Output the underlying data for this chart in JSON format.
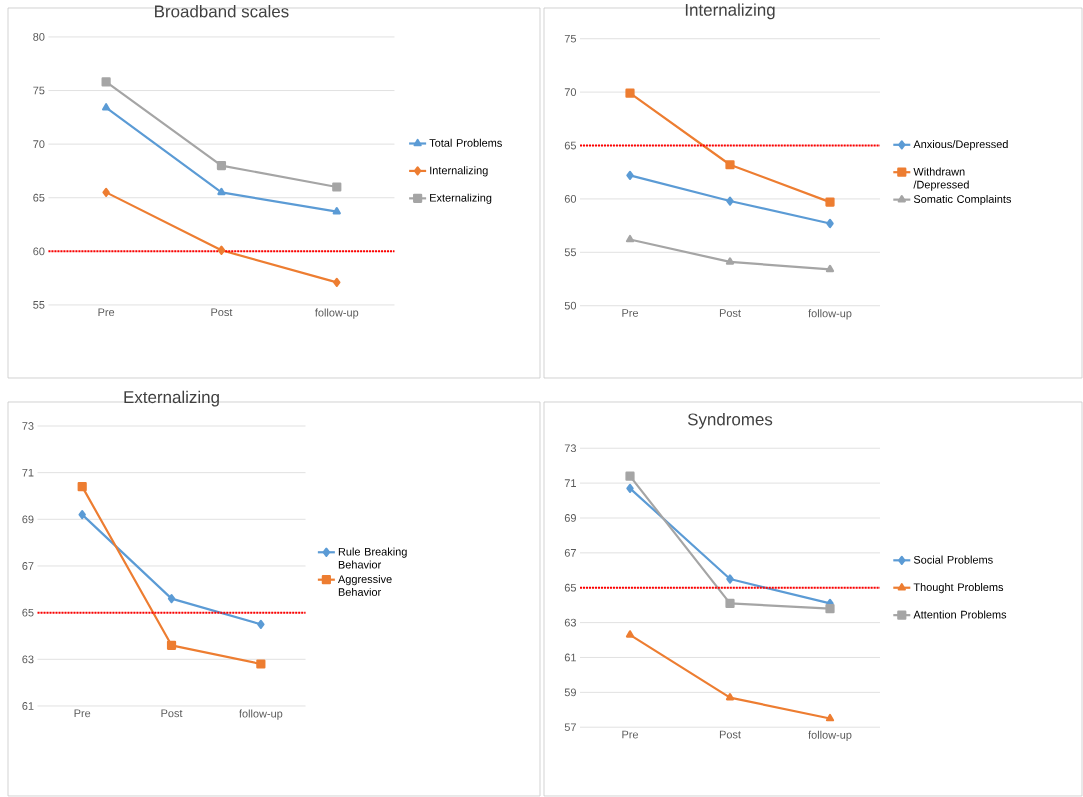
{
  "chart_data": [
    {
      "type": "line",
      "title": "Broadband scales",
      "categories": [
        "Pre",
        "Post",
        "follow-up"
      ],
      "ylim": [
        55,
        80
      ],
      "yticks": [
        55,
        60,
        65,
        70,
        75,
        80
      ],
      "grid": "y",
      "legend": "right",
      "series": [
        {
          "name": "Total Problems",
          "color": "#5b9bd5",
          "marker": "triangle",
          "values": [
            73.4,
            65.5,
            63.7
          ]
        },
        {
          "name": "Internalizing",
          "color": "#ed7d31",
          "marker": "diamond",
          "values": [
            65.5,
            60.1,
            57.1
          ]
        },
        {
          "name": "Externalizing",
          "color": "#a5a5a5",
          "marker": "square",
          "values": [
            75.8,
            68.0,
            66.0
          ]
        }
      ],
      "ref_lines": [
        {
          "axis": "y",
          "value": 60,
          "color": "#ff0000",
          "line_style": "dotted"
        }
      ]
    },
    {
      "type": "line",
      "title": "Internalizing",
      "categories": [
        "Pre",
        "Post",
        "follow-up"
      ],
      "ylim": [
        50,
        75
      ],
      "yticks": [
        50,
        55,
        60,
        65,
        70,
        75
      ],
      "grid": "y",
      "legend": "right",
      "series": [
        {
          "name": "Anxious/Depressed",
          "color": "#5b9bd5",
          "marker": "diamond",
          "values": [
            62.2,
            59.8,
            57.7
          ]
        },
        {
          "name": "Withdrawn /Depressed",
          "color": "#ed7d31",
          "marker": "square",
          "values": [
            69.9,
            63.2,
            59.7
          ]
        },
        {
          "name": "Somatic Complaints",
          "color": "#a5a5a5",
          "marker": "triangle",
          "values": [
            56.2,
            54.1,
            53.4
          ]
        }
      ],
      "ref_lines": [
        {
          "axis": "y",
          "value": 65,
          "color": "#ff0000",
          "line_style": "dotted"
        }
      ]
    },
    {
      "type": "line",
      "title": "Externalizing",
      "categories": [
        "Pre",
        "Post",
        "follow-up"
      ],
      "ylim": [
        61,
        73
      ],
      "yticks": [
        61,
        63,
        65,
        67,
        69,
        71,
        73
      ],
      "grid": "y",
      "legend": "right",
      "series": [
        {
          "name": "Rule Breaking Behavior",
          "color": "#5b9bd5",
          "marker": "diamond",
          "values": [
            69.2,
            65.6,
            64.5
          ]
        },
        {
          "name": "Aggressive Behavior",
          "color": "#ed7d31",
          "marker": "square",
          "values": [
            70.4,
            63.6,
            62.8
          ]
        }
      ],
      "ref_lines": [
        {
          "axis": "y",
          "value": 65,
          "color": "#ff0000",
          "line_style": "dotted"
        }
      ]
    },
    {
      "type": "line",
      "title": "Syndromes",
      "categories": [
        "Pre",
        "Post",
        "follow-up"
      ],
      "ylim": [
        57,
        73
      ],
      "yticks": [
        57,
        59,
        61,
        63,
        65,
        67,
        69,
        71,
        73
      ],
      "grid": "y",
      "legend": "right",
      "series": [
        {
          "name": "Social Problems",
          "color": "#5b9bd5",
          "marker": "diamond",
          "values": [
            70.7,
            65.5,
            64.1
          ]
        },
        {
          "name": "Thought Problems",
          "color": "#ed7d31",
          "marker": "triangle",
          "values": [
            62.3,
            58.7,
            57.5
          ]
        },
        {
          "name": "Attention Problems",
          "color": "#a5a5a5",
          "marker": "square",
          "values": [
            71.4,
            64.1,
            63.8
          ]
        }
      ],
      "ref_lines": [
        {
          "axis": "y",
          "value": 65,
          "color": "#ff0000",
          "line_style": "dotted"
        }
      ]
    }
  ]
}
